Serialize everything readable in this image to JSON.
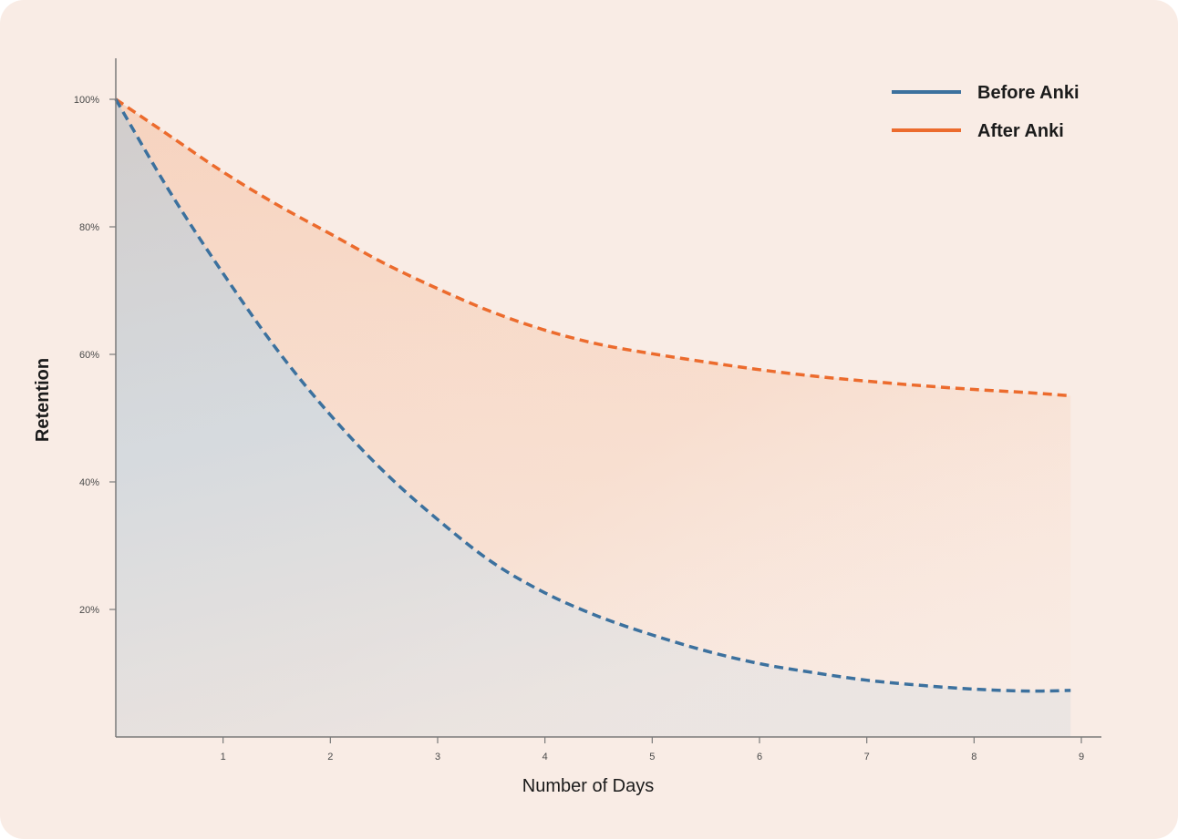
{
  "colors": {
    "background": "#F9ECE5",
    "before": "#3C719E",
    "after": "#EC6B2D",
    "axis": "#7A7A7A"
  },
  "chart_data": {
    "type": "line",
    "xlabel": "Number of Days",
    "ylabel": "Retention",
    "xlim": [
      0,
      9
    ],
    "ylim": [
      0,
      100
    ],
    "x_ticks": [
      "1",
      "2",
      "3",
      "4",
      "5",
      "6",
      "7",
      "8",
      "9"
    ],
    "y_ticks": [
      "20%",
      "40%",
      "60%",
      "80%",
      "100%"
    ],
    "legend_position": "top-right",
    "grid": false,
    "line_style": "dashed",
    "fill_under_curves": true,
    "series": [
      {
        "name": "Before Anki",
        "color": "#3C719E",
        "x": [
          0,
          0.5,
          1,
          1.5,
          2,
          2.5,
          3,
          3.5,
          4,
          4.5,
          5,
          5.5,
          6,
          6.5,
          7,
          7.5,
          8,
          8.5,
          8.9
        ],
        "y": [
          100,
          85.6,
          72.7,
          60.8,
          50.5,
          41.6,
          34.1,
          27.5,
          22.6,
          18.9,
          16.0,
          13.5,
          11.5,
          10.1,
          8.9,
          8.1,
          7.5,
          7.2,
          7.3
        ]
      },
      {
        "name": "After Anki",
        "color": "#EC6B2D",
        "x": [
          0,
          0.5,
          1,
          1.5,
          2,
          2.5,
          3,
          3.5,
          4,
          4.5,
          5,
          5.5,
          6,
          6.5,
          7,
          7.5,
          8,
          8.5,
          8.9
        ],
        "y": [
          100,
          94.3,
          88.6,
          83.5,
          78.9,
          74.3,
          70.3,
          66.7,
          63.8,
          61.6,
          60.1,
          58.8,
          57.6,
          56.6,
          55.8,
          55.1,
          54.5,
          54.0,
          53.5
        ]
      }
    ]
  }
}
